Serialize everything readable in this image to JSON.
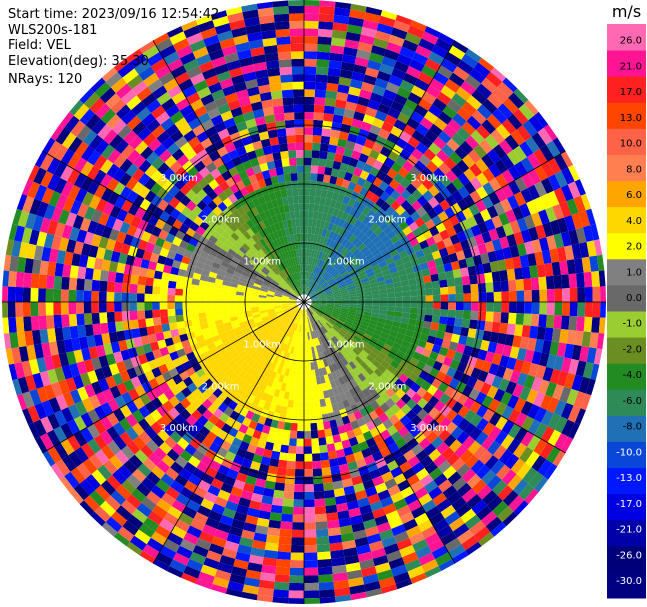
{
  "header": {
    "start_time": "Start time: 2023/09/16 12:54:42",
    "instrument": "WLS200s-181",
    "field": "Field: VEL",
    "elevation": "Elevation(deg): 35.30",
    "nrays": "NRays: 120"
  },
  "chart_data": {
    "type": "ppi",
    "field": "VEL",
    "unit": "m/s",
    "n_rays": 120,
    "elevation_deg": 35.3,
    "range_rings_km": [
      1.0,
      2.0,
      3.0
    ],
    "ring_labels": [
      "1.00km",
      "2.00km",
      "3.00km"
    ],
    "radial_spokes_deg": [
      0,
      30,
      60,
      90,
      120,
      150,
      180,
      210,
      240,
      270,
      300,
      330
    ],
    "coherent_region_km": 2.15,
    "velocity_pattern": {
      "description_free": true,
      "vmax": 5.5,
      "toward_direction_deg": 135,
      "offset": 0.8
    },
    "colorbar": {
      "label": "m/s",
      "ticks": [
        "26.0",
        "21.0",
        "17.0",
        "13.0",
        "10.0",
        "8.0",
        "6.0",
        "4.0",
        "2.0",
        "1.0",
        "0.0",
        "-1.0",
        "-2.0",
        "-4.0",
        "-6.0",
        "-8.0",
        "-10.0",
        "-13.0",
        "-17.0",
        "-21.0",
        "-26.0",
        "-30.0"
      ],
      "bins": [
        {
          "color": "#000080"
        },
        {
          "color": "#00007a"
        },
        {
          "color": "#0000a8"
        },
        {
          "color": "#0000e0"
        },
        {
          "color": "#0018ff"
        },
        {
          "color": "#0a46d8"
        },
        {
          "color": "#1f70b4"
        },
        {
          "color": "#2e8b57"
        },
        {
          "color": "#228b22"
        },
        {
          "color": "#6b8e23"
        },
        {
          "color": "#9acd32"
        },
        {
          "color": "#696969"
        },
        {
          "color": "#808080"
        },
        {
          "color": "#ffff00"
        },
        {
          "color": "#ffd700"
        },
        {
          "color": "#ffa500"
        },
        {
          "color": "#ff7f50"
        },
        {
          "color": "#ff6347"
        },
        {
          "color": "#ff4500"
        },
        {
          "color": "#ff2020"
        },
        {
          "color": "#ff1493"
        },
        {
          "color": "#ff69b4"
        }
      ]
    }
  }
}
